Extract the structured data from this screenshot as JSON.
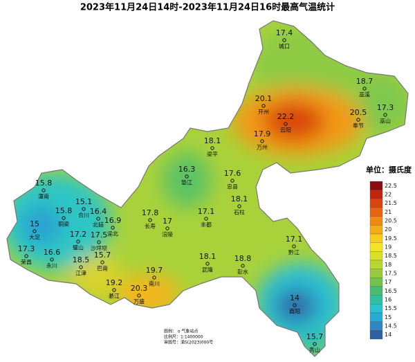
{
  "title": "2023年11月24日14时-2023年11月24日16时最高气温统计",
  "unit": "单位：摄氏度",
  "stations": [
    {
      "name": "城口",
      "value": 17.4
    },
    {
      "name": "巫溪",
      "value": 18.7
    },
    {
      "name": "开州",
      "value": 20.1
    },
    {
      "name": "云阳",
      "value": 22.2
    },
    {
      "name": "奉节",
      "value": 20.5
    },
    {
      "name": "巫山",
      "value": 17.3
    },
    {
      "name": "万州",
      "value": 17.9
    },
    {
      "name": "梁平",
      "value": 18.1
    },
    {
      "name": "垫江",
      "value": 16.3
    },
    {
      "name": "忠县",
      "value": 17.6
    },
    {
      "name": "潼南",
      "value": 15.8
    },
    {
      "name": "石柱",
      "value": 18.1
    },
    {
      "name": "铜梁",
      "value": 15.8
    },
    {
      "name": "合川",
      "value": 15.1
    },
    {
      "name": "北碚",
      "value": 16.4
    },
    {
      "name": "渝北",
      "value": 16.9
    },
    {
      "name": "长寿",
      "value": 17.8
    },
    {
      "name": "涪陵",
      "value": 17
    },
    {
      "name": "丰都",
      "value": 17.1
    },
    {
      "name": "大足",
      "value": 15
    },
    {
      "name": "璧山",
      "value": 17.2
    },
    {
      "name": "沙坪坝",
      "value": 17.5
    },
    {
      "name": "荣昌",
      "value": 17.3
    },
    {
      "name": "永川",
      "value": 16.6
    },
    {
      "name": "江津",
      "value": 18.5
    },
    {
      "name": "巴南",
      "value": 15.7
    },
    {
      "name": "黔江",
      "value": 17.1
    },
    {
      "name": "武隆",
      "value": 18.1
    },
    {
      "name": "彭水",
      "value": 18.8
    },
    {
      "name": "南川",
      "value": 19.7
    },
    {
      "name": "綦江",
      "value": 19.2
    },
    {
      "name": "万盛",
      "value": 20.3
    },
    {
      "name": "酉阳",
      "value": 14
    },
    {
      "name": "秀山",
      "value": 15.7
    }
  ],
  "legend": {
    "labels": [
      22.5,
      22,
      21.5,
      21,
      20.5,
      20,
      19.5,
      19,
      18.5,
      18,
      17.5,
      17,
      16.5,
      16,
      15.5,
      15,
      14.5,
      14
    ],
    "colors": [
      "#8b0e0e",
      "#c0260f",
      "#d9440f",
      "#e8650f",
      "#f08a12",
      "#f6ac17",
      "#f8cc1c",
      "#f2e323",
      "#d8e02a",
      "#b9d631",
      "#96cc3b",
      "#6fc24c",
      "#45bd73",
      "#2fc0a2",
      "#27c3cf",
      "#26abd5",
      "#2f86c0",
      "#2f5f9e"
    ]
  },
  "footnote": [
    "图例：  o 气象站点",
    "比例尺：1:1400000",
    "审图号：渝S(2023)000号"
  ]
}
